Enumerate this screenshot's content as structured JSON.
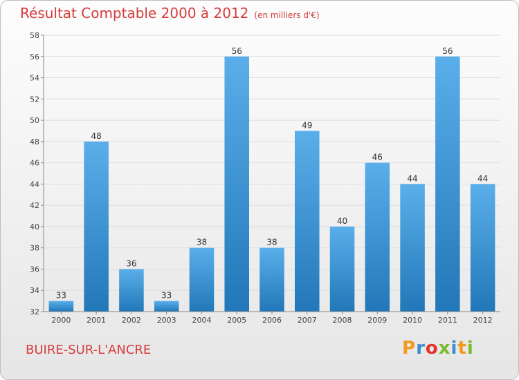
{
  "chart_data": {
    "type": "bar",
    "title": "Résultat Comptable 2000 à 2012",
    "unit_label": "(en milliers d'€)",
    "categories": [
      "2000",
      "2001",
      "2002",
      "2003",
      "2004",
      "2005",
      "2006",
      "2007",
      "2008",
      "2009",
      "2010",
      "2011",
      "2012"
    ],
    "values": [
      33,
      48,
      36,
      33,
      38,
      56,
      38,
      49,
      40,
      46,
      44,
      56,
      44
    ],
    "ylim": [
      32,
      58
    ],
    "yticks": [
      32,
      34,
      36,
      38,
      40,
      42,
      44,
      46,
      48,
      50,
      52,
      54,
      56,
      58
    ],
    "xlabel": "",
    "ylabel": "",
    "grid": true
  },
  "footer": {
    "place": "BUIRE-SUR-L'ANCRE",
    "logo_letters": [
      "P",
      "r",
      "o",
      "x",
      "i",
      "t",
      "i"
    ],
    "logo_colors": [
      "#f29a1c",
      "#3a8fd0",
      "#e3342f",
      "#7bb928",
      "#3a8fd0",
      "#f29a1c",
      "#7bb928"
    ]
  },
  "colors": {
    "bar_top": "#5aafea",
    "bar_bottom": "#2277b8",
    "text_red": "#d63c3c",
    "grid": "#dddddd"
  }
}
